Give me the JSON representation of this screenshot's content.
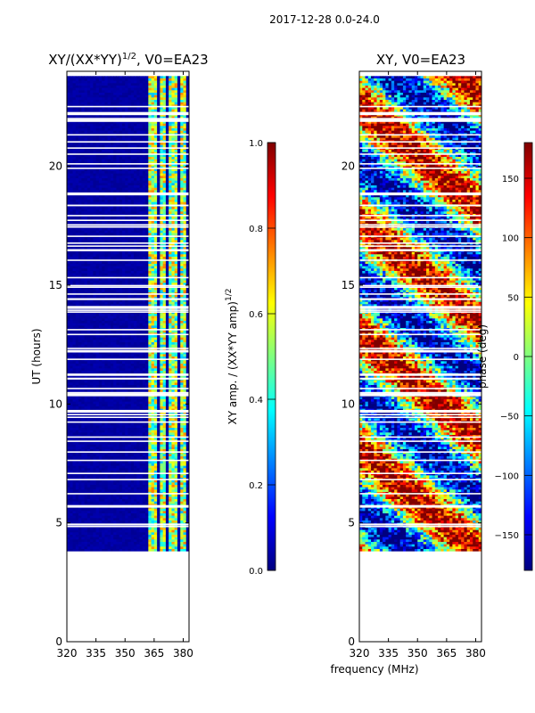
{
  "suptitle": "2017-12-28 0.0-24.0",
  "xlabel": "frequency (MHz)",
  "ylabel": "UT (hours)",
  "colors": {
    "jet": [
      "#00007f",
      "#0000ff",
      "#007fff",
      "#00ffff",
      "#7fff7f",
      "#ffff00",
      "#ff7f00",
      "#ff0000",
      "#7f0000"
    ]
  },
  "chart_data": [
    {
      "type": "heatmap",
      "title_prefix": "XY/(XX*YY)",
      "title_exp": "1/2",
      "title_suffix": ", V0=EA23",
      "x_range": [
        320,
        383
      ],
      "y_range": [
        0,
        24
      ],
      "x_ticks": [
        "320",
        "335",
        "350",
        "365",
        "380"
      ],
      "x_tick_values": [
        320,
        335,
        350,
        365,
        380
      ],
      "y_ticks": [
        "0",
        "5",
        "10",
        "15",
        "20"
      ],
      "y_tick_values": [
        0,
        5,
        10,
        15,
        20
      ],
      "data_start_ut": 3.8,
      "data_end_ut": 23.8,
      "signal_channels_mhz": [
        [
          362,
          366
        ],
        [
          367.5,
          371.5
        ],
        [
          373,
          377
        ],
        [
          378.5,
          381.5
        ]
      ],
      "signal_amp_range": [
        0.3,
        0.75
      ],
      "background_amp": 0.0,
      "colorbar": {
        "label_main": "XY amp. / (XX*YY amp)",
        "label_exp": "1/2",
        "range": [
          0.0,
          1.0
        ],
        "ticks": [
          "0.0",
          "0.2",
          "0.4",
          "0.6",
          "0.8",
          "1.0"
        ],
        "tick_values": [
          0.0,
          0.2,
          0.4,
          0.6,
          0.8,
          1.0
        ]
      }
    },
    {
      "type": "heatmap",
      "title": "XY, V0=EA23",
      "x_range": [
        320,
        383
      ],
      "y_range": [
        0,
        24
      ],
      "x_ticks": [
        "320",
        "335",
        "350",
        "365",
        "380"
      ],
      "x_tick_values": [
        320,
        335,
        350,
        365,
        380
      ],
      "y_ticks": [
        "0",
        "5",
        "10",
        "15",
        "20"
      ],
      "y_tick_values": [
        0,
        5,
        10,
        15,
        20
      ],
      "data_start_ut": 3.8,
      "data_end_ut": 23.8,
      "phase_range_deg": [
        -180,
        180
      ],
      "colorbar": {
        "label": "phase (deg)",
        "range": [
          -180,
          180
        ],
        "ticks": [
          "−150",
          "−100",
          "−50",
          "0",
          "50",
          "100",
          "150"
        ],
        "tick_values": [
          -150,
          -100,
          -50,
          0,
          50,
          100,
          150
        ]
      }
    }
  ]
}
